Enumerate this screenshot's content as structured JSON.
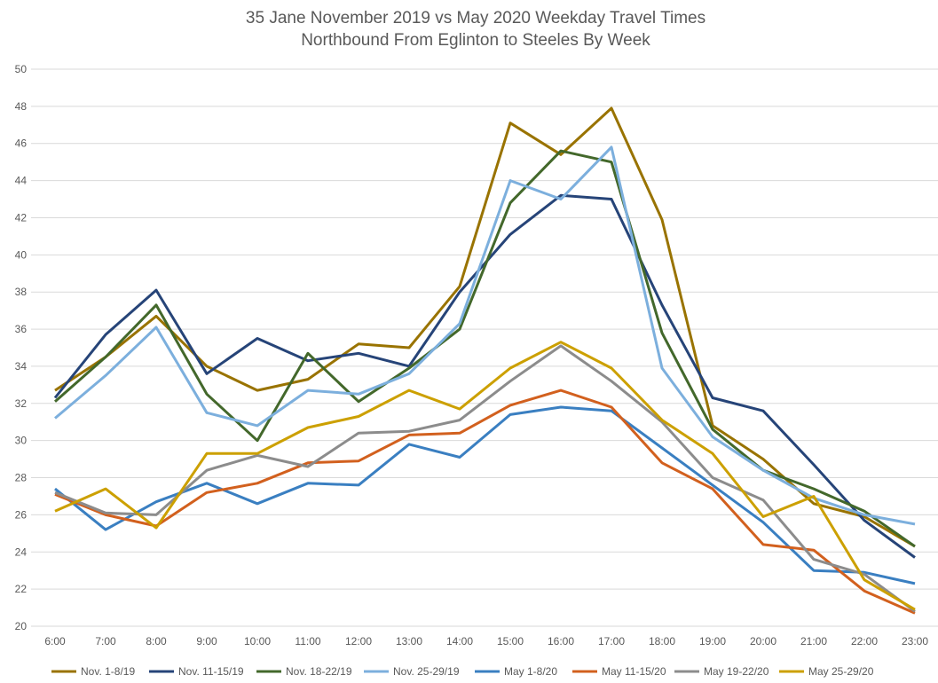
{
  "chart_data": {
    "type": "line",
    "title": "35 Jane November 2019 vs May 2020 Weekday Travel Times",
    "subtitle": "Northbound From Eglinton to Steeles By Week",
    "xlabel": "",
    "ylabel": "",
    "ylim": [
      20,
      50
    ],
    "ytick_step": 2,
    "grid": true,
    "legend_position": "bottom",
    "categories": [
      "6:00",
      "7:00",
      "8:00",
      "9:00",
      "10:00",
      "11:00",
      "12:00",
      "13:00",
      "14:00",
      "15:00",
      "16:00",
      "17:00",
      "18:00",
      "19:00",
      "20:00",
      "21:00",
      "22:00",
      "23:00"
    ],
    "series": [
      {
        "name": "Nov. 1-8/19",
        "color": "#997300",
        "values": [
          32.7,
          34.5,
          36.7,
          34.0,
          32.7,
          33.3,
          35.2,
          35.0,
          38.3,
          47.1,
          45.4,
          47.9,
          41.9,
          30.8,
          29.0,
          26.6,
          25.9,
          24.3
        ]
      },
      {
        "name": "Nov. 11-15/19",
        "color": "#264478",
        "values": [
          32.3,
          35.7,
          38.1,
          33.6,
          35.5,
          34.3,
          34.7,
          34.0,
          38.0,
          41.1,
          43.2,
          43.0,
          37.3,
          32.3,
          31.6,
          28.7,
          25.7,
          23.7
        ]
      },
      {
        "name": "Nov. 18-22/19",
        "color": "#43682B",
        "values": [
          32.1,
          34.5,
          37.3,
          32.5,
          30.0,
          34.7,
          32.1,
          33.9,
          36.0,
          42.8,
          45.6,
          45.0,
          35.8,
          30.6,
          28.4,
          27.4,
          26.2,
          24.3
        ]
      },
      {
        "name": "Nov. 25-29/19",
        "color": "#7CAFDD",
        "values": [
          31.2,
          33.5,
          36.1,
          31.5,
          30.8,
          32.7,
          32.5,
          33.6,
          36.3,
          44.0,
          43.0,
          45.8,
          33.9,
          30.2,
          28.4,
          26.9,
          26.0,
          25.5
        ]
      },
      {
        "name": "May 1-8/20",
        "color": "#3A7FC1",
        "values": [
          27.4,
          25.2,
          26.7,
          27.7,
          26.6,
          27.7,
          27.6,
          29.8,
          29.1,
          31.4,
          31.8,
          31.6,
          29.6,
          27.6,
          25.6,
          23.0,
          22.9,
          22.3
        ]
      },
      {
        "name": "May 11-15/20",
        "color": "#D2601E",
        "values": [
          27.1,
          26.0,
          25.4,
          27.2,
          27.7,
          28.8,
          28.9,
          30.3,
          30.4,
          31.9,
          32.7,
          31.8,
          28.8,
          27.4,
          24.4,
          24.1,
          21.9,
          20.7
        ]
      },
      {
        "name": "May 19-22/20",
        "color": "#8C8C8C",
        "values": [
          27.2,
          26.1,
          26.0,
          28.4,
          29.2,
          28.6,
          30.4,
          30.5,
          31.1,
          33.2,
          35.1,
          33.2,
          31.0,
          28.0,
          26.8,
          23.6,
          22.8,
          20.8
        ]
      },
      {
        "name": "May 25-29/20",
        "color": "#CCA000",
        "values": [
          26.2,
          27.4,
          25.3,
          29.3,
          29.3,
          30.7,
          31.3,
          32.7,
          31.7,
          33.9,
          35.3,
          33.9,
          31.1,
          29.3,
          25.9,
          27.0,
          22.5,
          20.9
        ]
      }
    ]
  }
}
